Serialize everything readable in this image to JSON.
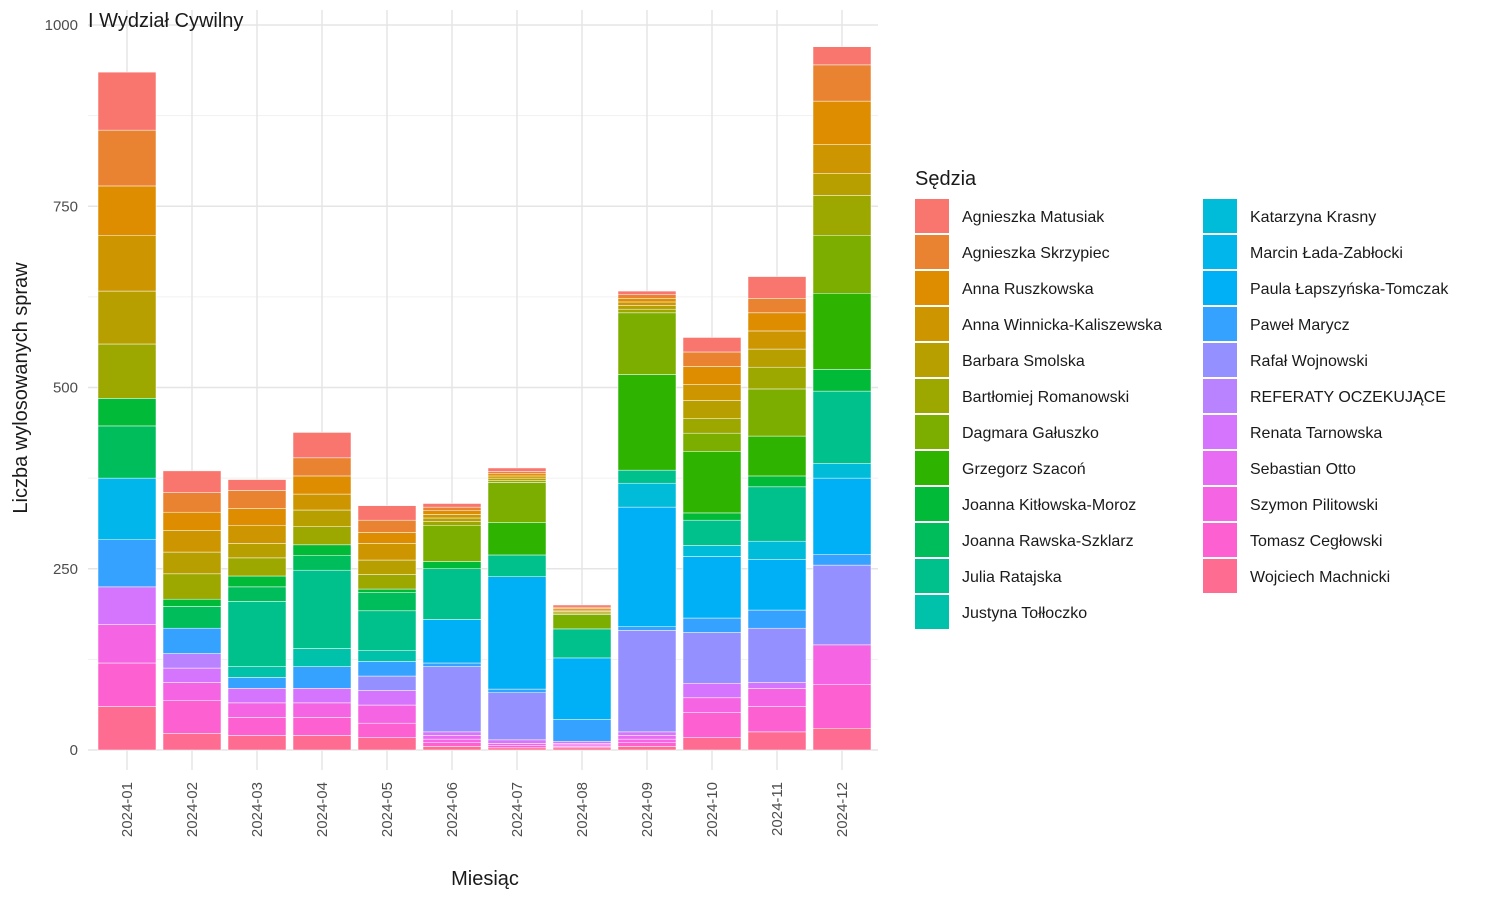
{
  "chart_data": {
    "type": "bar",
    "stacked": true,
    "title": "I Wydział Cywilny",
    "xlabel": "Miesiąc",
    "ylabel": "Liczba wylosowanych spraw",
    "ylim": [
      0,
      1000
    ],
    "yticks": [
      0,
      250,
      500,
      750,
      1000
    ],
    "grid": true,
    "legend_title": "Sędzia",
    "legend_position": "right",
    "categories": [
      "2024-01",
      "2024-02",
      "2024-03",
      "2024-04",
      "2024-05",
      "2024-06",
      "2024-07",
      "2024-08",
      "2024-09",
      "2024-10",
      "2024-11",
      "2024-12"
    ],
    "series": [
      {
        "name": "Agnieszka Matusiak",
        "color": "#F8766D",
        "values": [
          80,
          30,
          15,
          35,
          20,
          5,
          5,
          3,
          5,
          20,
          30,
          25
        ]
      },
      {
        "name": "Agnieszka Skrzypiec",
        "color": "#EA8331",
        "values": [
          77,
          27,
          25,
          25,
          17,
          5,
          3,
          2,
          5,
          20,
          20,
          50
        ]
      },
      {
        "name": "Anna Ruszkowska",
        "color": "#DE8C00",
        "values": [
          68,
          25,
          23,
          25,
          15,
          5,
          3,
          2,
          5,
          25,
          25,
          60
        ]
      },
      {
        "name": "Anna Winnicka-Kaliszewska",
        "color": "#CD9600",
        "values": [
          77,
          30,
          25,
          22,
          23,
          5,
          3,
          2,
          5,
          22,
          25,
          40
        ]
      },
      {
        "name": "Barbara Smolska",
        "color": "#B79F00",
        "values": [
          73,
          30,
          20,
          23,
          20,
          5,
          3,
          2,
          5,
          25,
          25,
          30
        ]
      },
      {
        "name": "Bartłomiej Romanowski",
        "color": "#9CA700",
        "values": [
          75,
          35,
          25,
          25,
          20,
          5,
          3,
          2,
          5,
          20,
          30,
          55
        ]
      },
      {
        "name": "Dagmara Gałuszko",
        "color": "#7CAE00",
        "values": [
          0,
          0,
          0,
          0,
          0,
          50,
          55,
          20,
          85,
          25,
          65,
          80
        ]
      },
      {
        "name": "Grzegorz Szacoń",
        "color": "#2EB300",
        "values": [
          0,
          0,
          0,
          0,
          0,
          0,
          45,
          0,
          132,
          85,
          55,
          105
        ]
      },
      {
        "name": "Joanna Kitłowska-Moroz",
        "color": "#00BA38",
        "values": [
          38,
          10,
          15,
          15,
          5,
          10,
          0,
          0,
          0,
          10,
          15,
          30
        ]
      },
      {
        "name": "Joanna Rawska-Szklarz",
        "color": "#00BD5C",
        "values": [
          72,
          30,
          20,
          20,
          25,
          0,
          0,
          0,
          0,
          0,
          0,
          0
        ]
      },
      {
        "name": "Julia Ratajska",
        "color": "#00C08B",
        "values": [
          0,
          0,
          90,
          108,
          55,
          70,
          30,
          40,
          18,
          35,
          75,
          100
        ]
      },
      {
        "name": "Justyna Tołłoczko",
        "color": "#00C1AA",
        "values": [
          0,
          0,
          15,
          25,
          15,
          0,
          0,
          0,
          0,
          0,
          0,
          0
        ]
      },
      {
        "name": "Katarzyna Krasny",
        "color": "#00BCD8",
        "values": [
          0,
          0,
          0,
          0,
          0,
          0,
          0,
          0,
          33,
          15,
          25,
          20
        ]
      },
      {
        "name": "Marcin Łada-Zabłocki",
        "color": "#00B6EB",
        "values": [
          85,
          0,
          0,
          0,
          0,
          0,
          0,
          0,
          0,
          0,
          0,
          0
        ]
      },
      {
        "name": "Paula Łapszyńska-Tomczak",
        "color": "#00B0F6",
        "values": [
          0,
          0,
          0,
          0,
          0,
          60,
          155,
          85,
          165,
          85,
          70,
          105
        ]
      },
      {
        "name": "Paweł Marycz",
        "color": "#35A2FF",
        "values": [
          65,
          35,
          15,
          30,
          20,
          5,
          5,
          30,
          5,
          20,
          25,
          15
        ]
      },
      {
        "name": "Rafał Wojnowski",
        "color": "#9590FF",
        "values": [
          0,
          0,
          0,
          0,
          20,
          90,
          65,
          0,
          140,
          70,
          75,
          110
        ]
      },
      {
        "name": "REFERATY OCZEKUJĄCE",
        "color": "#B983FF",
        "values": [
          0,
          20,
          0,
          0,
          0,
          0,
          0,
          0,
          0,
          0,
          0,
          0
        ]
      },
      {
        "name": "Renata Tarnowska",
        "color": "#D575FE",
        "values": [
          52,
          20,
          20,
          20,
          20,
          5,
          5,
          3,
          5,
          20,
          8,
          0
        ]
      },
      {
        "name": "Sebastian Otto",
        "color": "#E76BF3",
        "values": [
          0,
          0,
          0,
          0,
          0,
          5,
          0,
          2,
          5,
          0,
          0,
          0
        ]
      },
      {
        "name": "Szymon Pilitowski",
        "color": "#F564E3",
        "values": [
          53,
          25,
          20,
          20,
          25,
          5,
          3,
          2,
          5,
          20,
          25,
          55
        ]
      },
      {
        "name": "Tomasz Cegłowski",
        "color": "#FD61D1",
        "values": [
          60,
          45,
          25,
          25,
          20,
          5,
          3,
          2,
          5,
          35,
          35,
          60
        ]
      },
      {
        "name": "Wojciech Machnicki",
        "color": "#FF6C91",
        "values": [
          60,
          23,
          20,
          20,
          17,
          5,
          3,
          3,
          5,
          17,
          25,
          30
        ]
      }
    ]
  }
}
